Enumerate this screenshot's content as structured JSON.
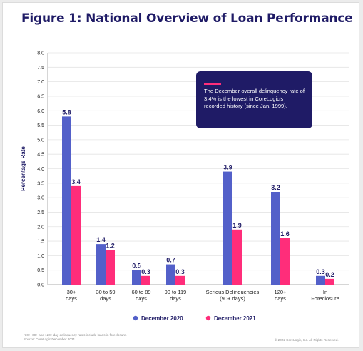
{
  "title": "Figure 1: National Overview of Loan Performance",
  "callout": {
    "text": "The December overall delinquency rate of 3.4% is the lowest in CoreLogic's recorded history (since Jan. 1999)."
  },
  "footnote": {
    "line1": "*30+, 60+ and 120+ day delinquency rates include loans in foreclosure.",
    "line2": "Source: CoreLogic December 2021"
  },
  "copyright": "© 2022 CoreLogic, Inc. All Rights Reserved.",
  "colors": {
    "title": "#1f1b66",
    "december_2020": "#5360c9",
    "december_2021": "#ff2d7a",
    "callout_bg": "#1f1b66",
    "grid": "#e4e4e4"
  },
  "chart_data": {
    "type": "bar",
    "title": "Figure 1: National Overview of Loan Performance",
    "ylabel": "Percentage Rate",
    "xlabel": "",
    "ylim": [
      0,
      8
    ],
    "yticks": [
      "0.0",
      "0.5",
      "1.0",
      "1.5",
      "2.0",
      "2.5",
      "3.0",
      "3.5",
      "4.0",
      "4.5",
      "5.0",
      "5.5",
      "6.0",
      "6.5",
      "7.0",
      "7.5",
      "8.0"
    ],
    "grid": true,
    "legend": "bottom-center",
    "categories": [
      [
        "30+",
        "days"
      ],
      [
        "30 to 59",
        "days"
      ],
      [
        "60 to 89",
        "days"
      ],
      [
        "90 to 119",
        "days"
      ],
      [
        "Serious Delinquencies",
        "(90+ days)"
      ],
      [
        "120+",
        "days"
      ],
      [
        "In",
        "Foreclosure"
      ]
    ],
    "series": [
      {
        "name": "December 2020",
        "values": [
          5.8,
          1.4,
          0.5,
          0.7,
          3.9,
          3.2,
          0.3
        ],
        "labels": [
          "5.8",
          "1.4",
          "0.5",
          "0.7",
          "3.9",
          "3.2",
          "0.3"
        ]
      },
      {
        "name": "December 2021",
        "values": [
          3.4,
          1.2,
          0.3,
          0.3,
          1.9,
          1.6,
          0.2
        ],
        "labels": [
          "3.4",
          "1.2",
          "0.3",
          "0.3",
          "1.9",
          "1.6",
          "0.2"
        ]
      }
    ]
  }
}
